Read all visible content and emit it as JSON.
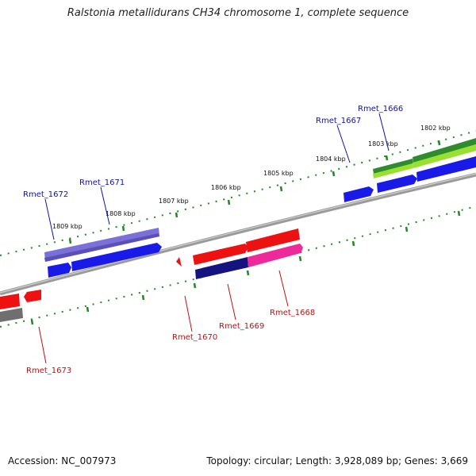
{
  "title": "Ralstonia metallidurans CH34 chromosome 1, complete sequence",
  "accession": "Accession: NC_007973",
  "topology": "Topology: circular; Length: 3,928,089 bp; Genes: 3,669",
  "colors": {
    "backbone": "#8a8a8a",
    "tick": "#1f8a1f",
    "forward_label": "#1010b0",
    "reverse_label": "#c01010"
  },
  "kbp_labels": [
    "1809 kbp",
    "1808 kbp",
    "1807 kbp",
    "1806 kbp",
    "1805 kbp",
    "1804 kbp",
    "1803 kbp",
    "1802 kbp"
  ],
  "forward_genes": [
    {
      "name": "Rmet_1672"
    },
    {
      "name": "Rmet_1671"
    },
    {
      "name": "Rmet_1667"
    },
    {
      "name": "Rmet_1666"
    }
  ],
  "reverse_genes": [
    {
      "name": "Rmet_1673"
    },
    {
      "name": "Rmet_1670"
    },
    {
      "name": "Rmet_1669"
    },
    {
      "name": "Rmet_1668"
    }
  ]
}
